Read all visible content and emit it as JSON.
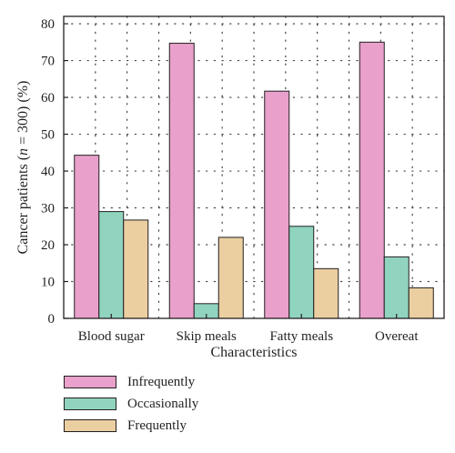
{
  "chart_data": {
    "type": "bar",
    "categories": [
      "Blood sugar",
      "Skip meals",
      "Fatty meals",
      "Overeat"
    ],
    "series": [
      {
        "name": "Infrequently",
        "color": "#e9a0cb",
        "values": [
          44.3,
          74.7,
          61.7,
          75.0
        ]
      },
      {
        "name": "Occasionally",
        "color": "#90d4bf",
        "values": [
          29.0,
          4.0,
          25.0,
          16.7
        ]
      },
      {
        "name": "Frequently",
        "color": "#ebcfa0",
        "values": [
          26.7,
          22.0,
          13.5,
          8.3
        ]
      }
    ],
    "xlabel": "Characteristics",
    "ylabel": "Cancer patients (n = 300) (%)",
    "ylim": [
      0,
      82
    ],
    "yticks": [
      0,
      10,
      20,
      30,
      40,
      50,
      60,
      70,
      80
    ],
    "grid": true,
    "legend_position": "bottom-left"
  }
}
